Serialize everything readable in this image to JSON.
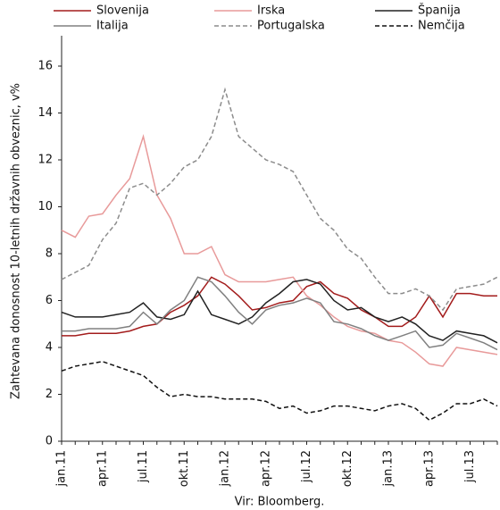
{
  "chart_data": {
    "type": "line",
    "y_label": "Zahtevana donosnost 10-letnih državnih obveznic, v%",
    "x_label": "Vir: Bloomberg.",
    "categories": [
      "jan.11",
      null,
      null,
      "apr.11",
      null,
      null,
      "jul.11",
      null,
      null,
      "okt.11",
      null,
      null,
      "jan.12",
      null,
      null,
      "apr.12",
      null,
      null,
      "jul.12",
      null,
      null,
      "okt.12",
      null,
      null,
      "jan.13",
      null,
      null,
      "apr.13",
      null,
      null,
      "jul.13",
      null,
      null
    ],
    "ylim": [
      0,
      17
    ],
    "yticks": [
      0,
      2,
      4,
      6,
      8,
      10,
      12,
      14,
      16
    ],
    "grid": false,
    "legend": "top",
    "series": [
      {
        "name": "Slovenija",
        "color": "#a31c1c",
        "style": "solid",
        "values": [
          4.5,
          4.5,
          4.6,
          4.6,
          4.6,
          4.7,
          4.9,
          5.0,
          5.5,
          5.8,
          6.2,
          7.0,
          6.7,
          6.2,
          5.6,
          5.7,
          5.9,
          6.0,
          6.6,
          6.8,
          6.3,
          6.1,
          5.6,
          5.3,
          4.9,
          4.9,
          5.3,
          6.2,
          5.3,
          6.3,
          6.3,
          6.2,
          6.2
        ]
      },
      {
        "name": "Irska",
        "color": "#e89a9a",
        "style": "solid",
        "values": [
          9.0,
          8.7,
          9.6,
          9.7,
          10.5,
          11.2,
          13.0,
          10.5,
          9.5,
          8.0,
          8.0,
          8.3,
          7.1,
          6.8,
          6.8,
          6.8,
          6.9,
          7.0,
          6.2,
          5.8,
          5.3,
          4.9,
          4.7,
          4.6,
          4.3,
          4.2,
          3.8,
          3.3,
          3.2,
          4.0,
          3.9,
          3.8,
          3.7
        ]
      },
      {
        "name": "Španija",
        "color": "#222222",
        "style": "solid",
        "values": [
          5.5,
          5.3,
          5.3,
          5.3,
          5.4,
          5.5,
          5.9,
          5.3,
          5.2,
          5.4,
          6.4,
          5.4,
          5.2,
          5.0,
          5.3,
          5.9,
          6.3,
          6.8,
          6.9,
          6.7,
          6.0,
          5.6,
          5.7,
          5.3,
          5.1,
          5.3,
          5.0,
          4.5,
          4.3,
          4.7,
          4.6,
          4.5,
          4.2
        ]
      },
      {
        "name": "Italija",
        "color": "#808080",
        "style": "solid",
        "values": [
          4.7,
          4.7,
          4.8,
          4.8,
          4.8,
          4.9,
          5.5,
          5.0,
          5.6,
          6.0,
          7.0,
          6.8,
          6.2,
          5.5,
          5.0,
          5.6,
          5.8,
          5.9,
          6.1,
          5.9,
          5.1,
          5.0,
          4.8,
          4.5,
          4.3,
          4.5,
          4.7,
          4.0,
          4.1,
          4.6,
          4.4,
          4.2,
          3.9
        ]
      },
      {
        "name": "Portugalska",
        "color": "#8c8c8c",
        "style": "dashed",
        "values": [
          6.9,
          7.2,
          7.5,
          8.6,
          9.3,
          10.8,
          11.0,
          10.5,
          11.0,
          11.7,
          12.0,
          13.0,
          15.0,
          13.0,
          12.5,
          12.0,
          11.8,
          11.5,
          10.5,
          9.5,
          9.0,
          8.2,
          7.8,
          7.0,
          6.3,
          6.3,
          6.5,
          6.2,
          5.6,
          6.5,
          6.6,
          6.7,
          7.0
        ]
      },
      {
        "name": "Nemčija",
        "color": "#111111",
        "style": "dashed",
        "values": [
          3.0,
          3.2,
          3.3,
          3.4,
          3.2,
          3.0,
          2.8,
          2.3,
          1.9,
          2.0,
          1.9,
          1.9,
          1.8,
          1.8,
          1.8,
          1.7,
          1.4,
          1.5,
          1.2,
          1.3,
          1.5,
          1.5,
          1.4,
          1.3,
          1.5,
          1.6,
          1.4,
          0.9,
          1.2,
          1.6,
          1.6,
          1.8,
          1.5
        ]
      }
    ]
  }
}
